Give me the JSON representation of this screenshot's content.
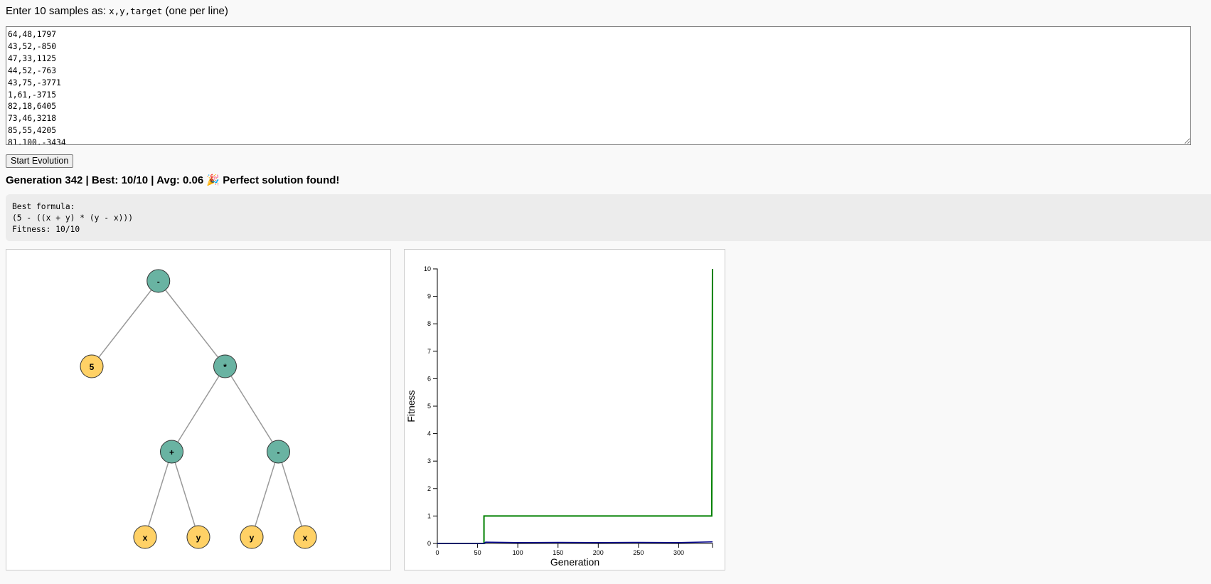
{
  "intro": {
    "prefix": "Enter 10 samples as: ",
    "format": "x,y,target",
    "suffix": " (one per line)"
  },
  "samples_text": "64,48,1797\n43,52,-850\n47,33,1125\n44,52,-763\n43,75,-3771\n1,61,-3715\n82,18,6405\n73,46,3218\n85,55,4205\n81,100,-3434",
  "start_button": "Start Evolution",
  "status": "Generation 342 | Best: 10/10 | Avg: 0.06 🎉 Perfect solution found!",
  "result": {
    "line1": "Best formula:",
    "line2": "(5 - ((x + y) * (y - x)))",
    "line3": "Fitness: 10/10"
  },
  "tree": {
    "nodes": [
      {
        "id": "n0",
        "label": "-",
        "kind": "op",
        "parent": null
      },
      {
        "id": "n1",
        "label": "5",
        "kind": "leaf",
        "parent": "n0"
      },
      {
        "id": "n2",
        "label": "*",
        "kind": "op",
        "parent": "n0"
      },
      {
        "id": "n3",
        "label": "+",
        "kind": "op",
        "parent": "n2"
      },
      {
        "id": "n4",
        "label": "-",
        "kind": "op",
        "parent": "n2"
      },
      {
        "id": "n5",
        "label": "x",
        "kind": "leaf",
        "parent": "n3"
      },
      {
        "id": "n6",
        "label": "y",
        "kind": "leaf",
        "parent": "n3"
      },
      {
        "id": "n7",
        "label": "y",
        "kind": "leaf",
        "parent": "n4"
      },
      {
        "id": "n8",
        "label": "x",
        "kind": "leaf",
        "parent": "n4"
      }
    ],
    "colors": {
      "op": "#69b3a2",
      "leaf": "#ffd166",
      "edge": "#999999",
      "stroke": "#333333"
    }
  },
  "chart_data": {
    "type": "line",
    "xlabel": "Generation",
    "ylabel": "Fitness",
    "xlim": [
      0,
      342
    ],
    "ylim": [
      0,
      10
    ],
    "x_ticks": [
      0,
      50,
      100,
      150,
      200,
      250,
      300
    ],
    "y_ticks": [
      0,
      1,
      2,
      3,
      4,
      5,
      6,
      7,
      8,
      9,
      10
    ],
    "series": [
      {
        "color": "#008000",
        "points": [
          [
            0,
            0
          ],
          [
            58,
            0
          ],
          [
            58,
            1
          ],
          [
            341,
            1
          ],
          [
            342,
            10
          ]
        ]
      },
      {
        "color": "#00008b",
        "points": [
          [
            0,
            0
          ],
          [
            58,
            0
          ],
          [
            60,
            0.05
          ],
          [
            100,
            0.03
          ],
          [
            150,
            0.04
          ],
          [
            200,
            0.03
          ],
          [
            250,
            0.04
          ],
          [
            300,
            0.03
          ],
          [
            342,
            0.06
          ]
        ]
      }
    ],
    "grid": false
  }
}
